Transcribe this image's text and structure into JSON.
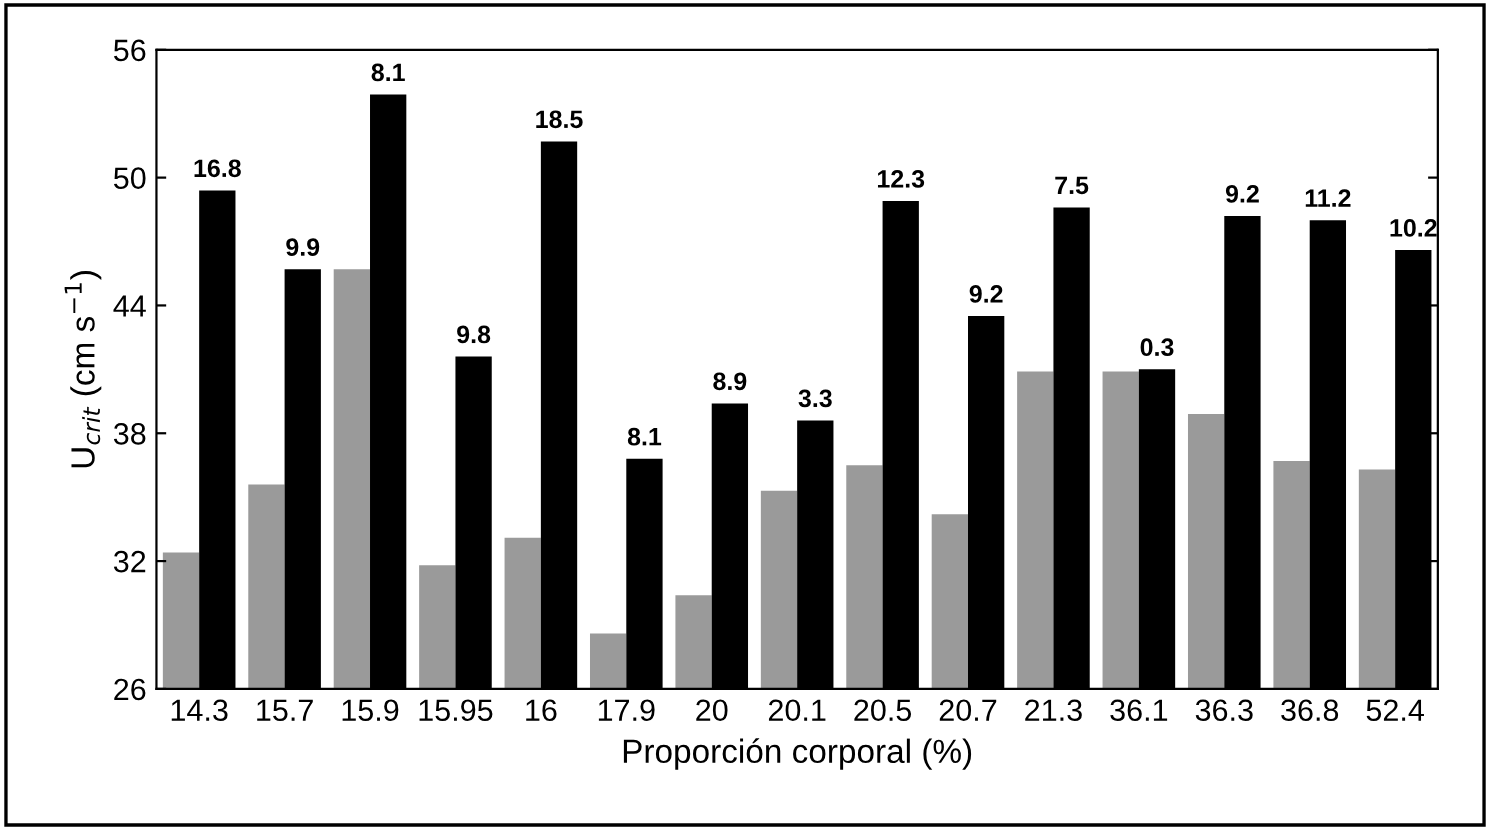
{
  "chart_data": {
    "type": "bar",
    "xlabel": "Proporción corporal (%)",
    "ylabel": "U$_{crit}$ (cm s$^{−1}$)",
    "categories": [
      "14.3",
      "15.7",
      "15.9",
      "15.95",
      "16",
      "17.9",
      "20",
      "20.1",
      "20.5",
      "20.7",
      "21.3",
      "36.1",
      "36.3",
      "36.8",
      "52.4"
    ],
    "series": [
      {
        "color": "#9a9a9a",
        "values": [
          32.4,
          35.6,
          45.7,
          31.8,
          33.1,
          28.6,
          30.4,
          35.3,
          36.5,
          34.2,
          40.9,
          40.9,
          38.9,
          36.7,
          36.3
        ]
      },
      {
        "color": "#000000",
        "values": [
          49.4,
          45.7,
          53.9,
          41.6,
          51.7,
          36.8,
          39.4,
          38.6,
          48.9,
          43.5,
          48.6,
          41.0,
          48.2,
          48.0,
          46.6
        ]
      }
    ],
    "annotations": [
      {
        "text": "16.8",
        "x": "14.3",
        "y": 49.4
      },
      {
        "text": "9.9",
        "x": "15.7",
        "y": 45.7
      },
      {
        "text": "8.1",
        "x": "15.9",
        "y": 53.9
      },
      {
        "text": "9.8",
        "x": "15.95",
        "y": 41.6
      },
      {
        "text": "18.5",
        "x": "16",
        "y": 51.7
      },
      {
        "text": "8.1",
        "x": "17.9",
        "y": 36.8
      },
      {
        "text": "8.9",
        "x": "20",
        "y": 39.4
      },
      {
        "text": "3.3",
        "x": "20.1",
        "y": 38.6
      },
      {
        "text": "12.3",
        "x": "20.5",
        "y": 48.9
      },
      {
        "text": "9.2",
        "x": "20.7",
        "y": 43.5
      },
      {
        "text": "7.5",
        "x": "21.3",
        "y": 48.6
      },
      {
        "text": "0.3",
        "x": "36.1",
        "y": 41.0
      },
      {
        "text": "9.2",
        "x": "36.3",
        "y": 48.2
      },
      {
        "text": "11.2",
        "x": "36.8",
        "y": 48.0
      },
      {
        "text": "10.2",
        "x": "52.4",
        "y": 46.6
      }
    ],
    "ylim": [
      26,
      56
    ],
    "yticks": [
      26,
      32,
      38,
      44,
      50,
      56
    ],
    "grid": false,
    "legend": false
  }
}
